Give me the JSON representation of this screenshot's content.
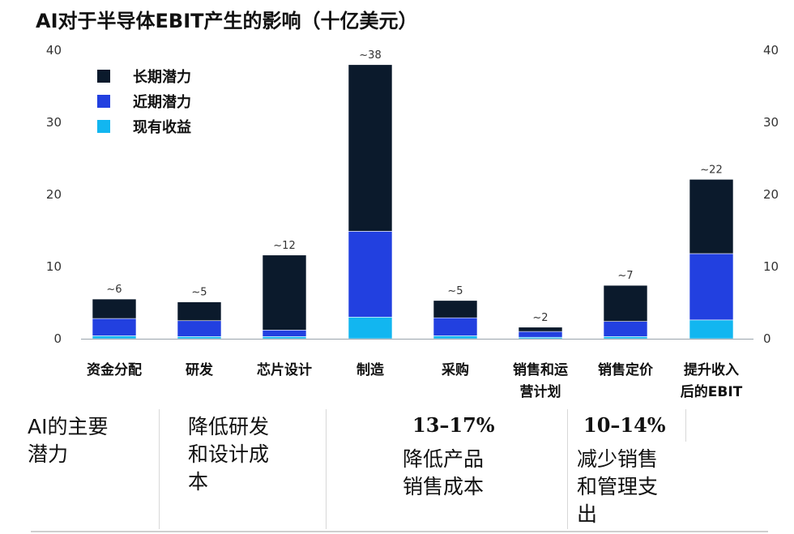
{
  "title": "AI对于半导体EBIT产生的影响（十亿美元）",
  "legend": [
    {
      "label": "长期潜力",
      "color": "#0b1a2c"
    },
    {
      "label": "近期潜力",
      "color": "#2240e0"
    },
    {
      "label": "现有收益",
      "color": "#12b6f0"
    }
  ],
  "chart_data": {
    "type": "bar",
    "stacked": true,
    "categories": [
      "资金分配",
      "研发",
      "芯片设计",
      "制造",
      "采购",
      "销售和运营计划",
      "销售定价",
      "提升收入后的EBIT"
    ],
    "category_lines": [
      [
        "资金分配"
      ],
      [
        "研发"
      ],
      [
        "芯片设计"
      ],
      [
        "制造"
      ],
      [
        "采购"
      ],
      [
        "销售和运",
        "营计划"
      ],
      [
        "销售定价"
      ],
      [
        "提升收入",
        "后的EBIT"
      ]
    ],
    "series": [
      {
        "name": "现有收益",
        "color": "#12b6f0",
        "values": [
          0.4,
          0.3,
          0.3,
          3.0,
          0.4,
          0.2,
          0.3,
          2.6
        ]
      },
      {
        "name": "近期潜力",
        "color": "#2240e0",
        "values": [
          2.4,
          2.2,
          0.9,
          11.9,
          2.5,
          0.8,
          2.1,
          9.2
        ]
      },
      {
        "name": "长期潜力",
        "color": "#0b1a2c",
        "values": [
          2.7,
          2.6,
          10.4,
          23.1,
          2.4,
          0.6,
          5.0,
          10.3
        ]
      }
    ],
    "total_labels": [
      "~6",
      "~5",
      "~12",
      "~38",
      "~5",
      "~2",
      "~7",
      "~22"
    ],
    "ylim": [
      0,
      40
    ],
    "yticks": [
      0,
      10,
      20,
      30,
      40
    ],
    "grid": false,
    "legend_position": "top-left"
  },
  "bottom": {
    "row_header": "AI的主要潜力",
    "row_header_lines": [
      "AI的主要",
      "潜力"
    ],
    "rd": "降低研发和设计成本",
    "rd_lines": [
      "降低研发",
      "和设计成",
      "本"
    ],
    "cogs_pct": "13–17%",
    "cogs": "降低产品销售成本",
    "cogs_lines": [
      "降低产品",
      "销售成本"
    ],
    "sga_pct": "10–14%",
    "sga": "减少销售和管理支出",
    "sga_lines": [
      "减少销售",
      "和管理支",
      "出"
    ]
  }
}
